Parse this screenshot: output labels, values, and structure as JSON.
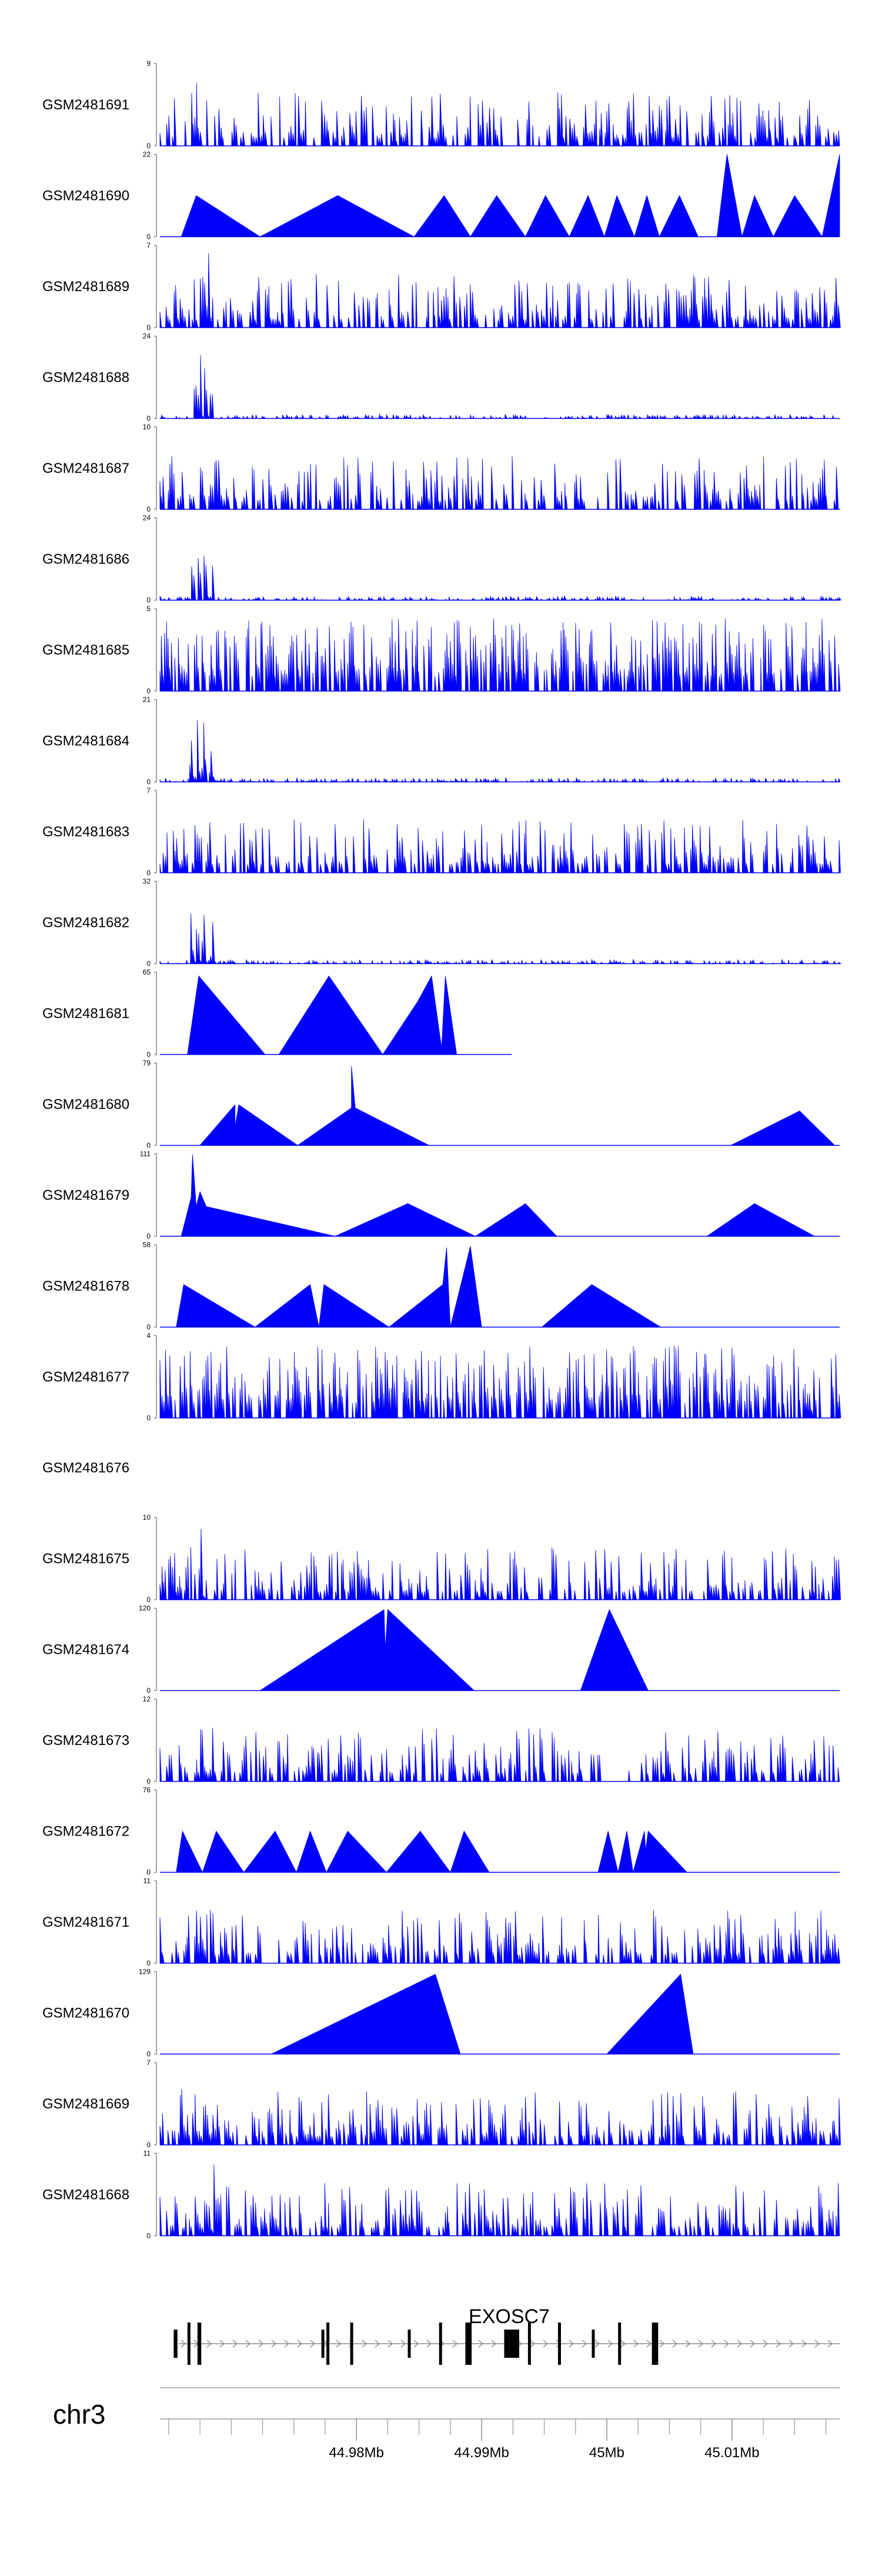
{
  "chart_data": {
    "type": "area",
    "title": "",
    "xlabel": "",
    "ylabel": "",
    "chromosome": "chr3",
    "xlim": [
      44.9643,
      45.0186
    ],
    "xaxis": {
      "ticks": [
        44.98,
        44.99,
        45.0,
        45.01
      ],
      "tick_labels": [
        "44.98Mb",
        "44.99Mb",
        "45Mb",
        "45.01Mb"
      ]
    },
    "fill_color": "#0000ff",
    "tracks": [
      {
        "name": "GSM2481691",
        "ymax": 9,
        "profile": "noise",
        "seed": 11,
        "peaks": [
          [
            44.9672,
            9
          ],
          [
            44.983,
            6
          ],
          [
            45.0018,
            7.5
          ],
          [
            45.0123,
            5
          ]
        ]
      },
      {
        "name": "GSM2481690",
        "ymax": 22,
        "profile": "tri",
        "peaks": [
          [
            44.966,
            0
          ],
          [
            44.9672,
            11
          ],
          [
            44.9723,
            0
          ],
          [
            44.9785,
            11
          ],
          [
            44.9846,
            0
          ],
          [
            44.987,
            11
          ],
          [
            44.9891,
            0
          ],
          [
            44.9912,
            11
          ],
          [
            44.9935,
            0
          ],
          [
            44.9951,
            11
          ],
          [
            44.997,
            0
          ],
          [
            44.9985,
            11
          ],
          [
            44.9998,
            0
          ],
          [
            45.0008,
            11
          ],
          [
            45.0022,
            0
          ],
          [
            45.0032,
            11
          ],
          [
            45.0042,
            0
          ],
          [
            45.0058,
            11
          ],
          [
            45.0073,
            0
          ],
          [
            45.0088,
            0
          ],
          [
            45.0096,
            22
          ],
          [
            45.0108,
            0
          ],
          [
            45.0118,
            11
          ],
          [
            45.0133,
            0
          ],
          [
            45.015,
            11
          ],
          [
            45.0172,
            0
          ],
          [
            45.0186,
            22
          ]
        ],
        "gaps": [
          [
            45.0073,
            45.0088
          ]
        ]
      },
      {
        "name": "GSM2481689",
        "ymax": 7,
        "profile": "noise",
        "seed": 23,
        "peaks": [
          [
            44.9682,
            7
          ],
          [
            44.974,
            5
          ],
          [
            45.0098,
            6
          ],
          [
            45.0151,
            5
          ]
        ]
      },
      {
        "name": "GSM2481688",
        "ymax": 24,
        "profile": "early",
        "seed": 31,
        "peaks": [
          [
            44.9671,
            17
          ],
          [
            44.9675,
            24
          ],
          [
            44.9679,
            21
          ],
          [
            44.9684,
            14
          ]
        ]
      },
      {
        "name": "GSM2481687",
        "ymax": 10,
        "profile": "noise",
        "seed": 37,
        "peaks": [
          [
            44.9676,
            10
          ],
          [
            44.9684,
            5
          ],
          [
            45.0078,
            6
          ],
          [
            45.0106,
            5.5
          ]
        ]
      },
      {
        "name": "GSM2481686",
        "ymax": 24,
        "profile": "early",
        "seed": 41,
        "peaks": [
          [
            44.9669,
            17
          ],
          [
            44.9674,
            22
          ],
          [
            44.9679,
            23
          ],
          [
            44.9685,
            13
          ]
        ]
      },
      {
        "name": "GSM2481685",
        "ymax": 5,
        "profile": "noise_dense",
        "seed": 43,
        "peaks": [
          [
            44.998,
            5
          ],
          [
            45.0178,
            5
          ],
          [
            45.0165,
            4
          ]
        ]
      },
      {
        "name": "GSM2481684",
        "ymax": 21,
        "profile": "early",
        "seed": 47,
        "peaks": [
          [
            44.9668,
            14
          ],
          [
            44.9673,
            20
          ],
          [
            44.9678,
            16
          ],
          [
            44.9684,
            10
          ]
        ]
      },
      {
        "name": "GSM2481683",
        "ymax": 7,
        "profile": "noise",
        "seed": 53,
        "peaks": [
          [
            44.9675,
            7
          ],
          [
            44.9682,
            5.5
          ],
          [
            45.0034,
            4
          ]
        ]
      },
      {
        "name": "GSM2481682",
        "ymax": 32,
        "profile": "early",
        "seed": 59,
        "peaks": [
          [
            44.9668,
            24
          ],
          [
            44.9673,
            30
          ],
          [
            44.9678,
            27
          ],
          [
            44.9685,
            18
          ]
        ]
      },
      {
        "name": "GSM2481681",
        "ymax": 65,
        "profile": "tri",
        "peaks": [
          [
            44.9665,
            0
          ],
          [
            44.9674,
            62
          ],
          [
            44.9727,
            0
          ],
          [
            44.9738,
            0
          ],
          [
            44.9778,
            62
          ],
          [
            44.9821,
            0
          ],
          [
            44.9849,
            42
          ],
          [
            44.986,
            62
          ],
          [
            44.9868,
            5
          ],
          [
            44.9871,
            62
          ],
          [
            44.988,
            0
          ]
        ],
        "baseline_to": 44.9924
      },
      {
        "name": "GSM2481680",
        "ymax": 79,
        "profile": "tri",
        "peaks": [
          [
            44.9675,
            0
          ],
          [
            44.9703,
            39
          ],
          [
            44.9703,
            18
          ],
          [
            44.9706,
            39
          ],
          [
            44.9753,
            0
          ],
          [
            44.9796,
            36
          ],
          [
            44.9796,
            76
          ],
          [
            44.9799,
            36
          ],
          [
            44.9858,
            0
          ],
          [
            45.0099,
            0
          ],
          [
            45.0154,
            33
          ],
          [
            45.0182,
            0
          ]
        ]
      },
      {
        "name": "GSM2481679",
        "ymax": 111,
        "profile": "tri",
        "peaks": [
          [
            44.966,
            0
          ],
          [
            44.9668,
            53
          ],
          [
            44.9669,
            110
          ],
          [
            44.9672,
            40
          ],
          [
            44.9675,
            60
          ],
          [
            44.968,
            40
          ],
          [
            44.9783,
            0
          ],
          [
            44.9841,
            44
          ],
          [
            44.9895,
            0
          ],
          [
            44.9935,
            44
          ],
          [
            44.996,
            0
          ],
          [
            45.008,
            0
          ],
          [
            45.0118,
            44
          ],
          [
            45.0166,
            0
          ]
        ]
      },
      {
        "name": "GSM2481678",
        "ymax": 58,
        "profile": "tri",
        "peaks": [
          [
            44.9656,
            0
          ],
          [
            44.9662,
            30
          ],
          [
            44.9719,
            0
          ],
          [
            44.9763,
            30
          ],
          [
            44.977,
            0
          ],
          [
            44.9774,
            30
          ],
          [
            44.9826,
            0
          ],
          [
            44.9869,
            30
          ],
          [
            44.9872,
            56
          ],
          [
            44.9875,
            0
          ],
          [
            44.9891,
            57
          ],
          [
            44.99,
            0
          ],
          [
            44.9948,
            0
          ],
          [
            44.9988,
            30
          ],
          [
            45.0043,
            0
          ]
        ]
      },
      {
        "name": "GSM2481677",
        "ymax": 4,
        "profile": "noise_dense",
        "seed": 61,
        "peaks": [
          [
            44.991,
            4
          ],
          [
            45.0165,
            4
          ],
          [
            44.9787,
            3.5
          ]
        ]
      },
      {
        "name": "GSM2481676",
        "ymax": null,
        "profile": "empty"
      },
      {
        "name": "GSM2481675",
        "ymax": 10,
        "profile": "noise",
        "seed": 67,
        "peaks": [
          [
            44.9676,
            10
          ],
          [
            44.99,
            5.5
          ],
          [
            45.015,
            6
          ]
        ]
      },
      {
        "name": "GSM2481674",
        "ymax": 120,
        "profile": "tri",
        "peaks": [
          [
            44.9723,
            0
          ],
          [
            44.9822,
            118
          ],
          [
            44.9823,
            60
          ],
          [
            44.9825,
            118
          ],
          [
            44.9894,
            0
          ],
          [
            44.9979,
            0
          ],
          [
            45.0002,
            118
          ],
          [
            45.0033,
            0
          ]
        ]
      },
      {
        "name": "GSM2481673",
        "ymax": 12,
        "profile": "noise",
        "seed": 71,
        "peaks": [
          [
            44.9676,
            12
          ],
          [
            44.9685,
            9
          ],
          [
            45.01,
            6
          ]
        ],
        "gaps": [
          [
            44.9995,
            45.0013
          ]
        ]
      },
      {
        "name": "GSM2481672",
        "ymax": 76,
        "profile": "tri",
        "peaks": [
          [
            44.9656,
            0
          ],
          [
            44.9661,
            38
          ],
          [
            44.9677,
            0
          ],
          [
            44.9688,
            38
          ],
          [
            44.971,
            0
          ],
          [
            44.9735,
            38
          ],
          [
            44.9752,
            0
          ],
          [
            44.9763,
            38
          ],
          [
            44.9776,
            0
          ],
          [
            44.9793,
            38
          ],
          [
            44.9824,
            0
          ],
          [
            44.9851,
            38
          ],
          [
            44.9875,
            0
          ],
          [
            44.9886,
            38
          ],
          [
            44.9906,
            0
          ],
          [
            44.9993,
            0
          ],
          [
            45.0001,
            38
          ],
          [
            45.0009,
            0
          ],
          [
            45.0016,
            38
          ],
          [
            45.0021,
            0
          ],
          [
            45.003,
            38
          ],
          [
            45.0031,
            20
          ],
          [
            45.0033,
            38
          ],
          [
            45.0064,
            0
          ]
        ]
      },
      {
        "name": "GSM2481671",
        "ymax": 11,
        "profile": "noise",
        "seed": 73,
        "peaks": [
          [
            44.9672,
            10.5
          ],
          [
            44.9676,
            9
          ],
          [
            45.0124,
            5
          ]
        ]
      },
      {
        "name": "GSM2481670",
        "ymax": 129,
        "profile": "tri",
        "peaks": [
          [
            44.9732,
            0
          ],
          [
            44.9863,
            125
          ],
          [
            44.9883,
            0
          ],
          [
            44.9965,
            0
          ],
          [
            45.0,
            0
          ],
          [
            45.0059,
            125
          ],
          [
            45.0069,
            0
          ]
        ]
      },
      {
        "name": "GSM2481669",
        "ymax": 7,
        "profile": "noise",
        "seed": 79,
        "peaks": [
          [
            44.966,
            7
          ],
          [
            44.9671,
            6
          ],
          [
            44.968,
            5.5
          ],
          [
            44.974,
            4
          ]
        ]
      },
      {
        "name": "GSM2481668",
        "ymax": 11,
        "profile": "noise",
        "seed": 83,
        "peaks": [
          [
            44.9686,
            11
          ],
          [
            44.9655,
            6
          ],
          [
            45.0102,
            6
          ],
          [
            45.0178,
            6
          ]
        ]
      }
    ],
    "gene_track": {
      "gene": "EXOSC7",
      "strand": "+",
      "intron_start": 44.9658,
      "intron_end": 45.0186,
      "exons": [
        [
          44.9654,
          44.9657
        ],
        [
          44.9665,
          44.9666
        ],
        [
          44.9673,
          44.9676
        ],
        [
          44.9772,
          44.9774
        ],
        [
          44.9776,
          44.9778
        ],
        [
          44.9795,
          44.9796
        ],
        [
          44.9841,
          44.9842
        ],
        [
          44.9866,
          44.9868
        ],
        [
          44.9887,
          44.9892
        ],
        [
          44.9918,
          44.993
        ],
        [
          44.9937,
          44.9938
        ],
        [
          44.9961,
          44.9962
        ],
        [
          44.9988,
          44.9989
        ],
        [
          45.0009,
          45.001
        ],
        [
          45.0036,
          45.0041
        ]
      ]
    }
  }
}
